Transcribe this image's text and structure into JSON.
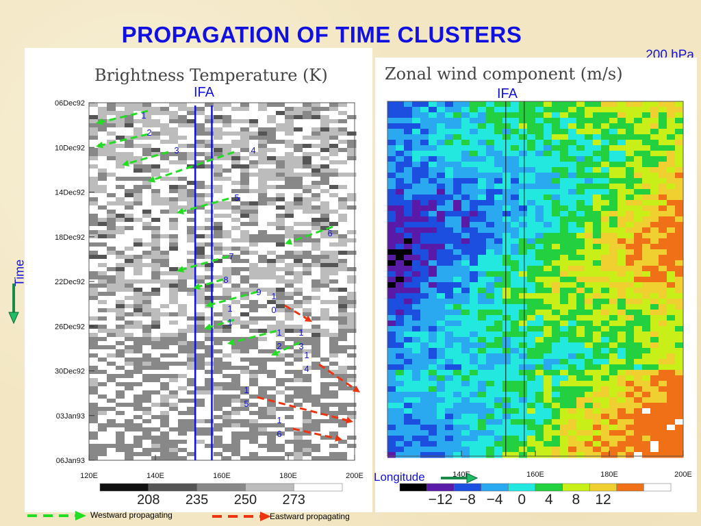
{
  "slide": {
    "title": "PROPAGATION  OF TIME CLUSTERS",
    "level_label": "200 hPa",
    "time_label": "Time",
    "longitude_label": "Longitude",
    "westward_label": "Westward propagating",
    "eastward_label": "Eastward propagating",
    "ifa_label": "IFA"
  },
  "colors": {
    "title": "#1010e0",
    "westward": "#22dd22",
    "eastward": "#ee3311"
  },
  "chart_data": [
    {
      "type": "heatmap",
      "title": "Brightness Temperature (K)",
      "xlabel": "",
      "ylabel": "",
      "x_ticks": [
        "120E",
        "140E",
        "160E",
        "180E",
        "200E"
      ],
      "x_range": [
        120,
        200
      ],
      "y_ticks": [
        "06Dec92",
        "10Dec92",
        "14Dec92",
        "18Dec92",
        "22Dec92",
        "26Dec92",
        "30Dec92",
        "03Jan93",
        "06Jan93"
      ],
      "colorbar": {
        "labels": [
          "208",
          "235",
          "250",
          "273"
        ],
        "colors": [
          "#101010",
          "#555555",
          "#888888",
          "#bcbcbc",
          "#ffffff"
        ]
      },
      "ifa_lon": [
        152,
        157
      ],
      "tracks": [
        {
          "label": "1",
          "dir": "westward"
        },
        {
          "label": "2",
          "dir": "westward"
        },
        {
          "label": "3",
          "dir": "westward"
        },
        {
          "label": "4",
          "dir": "westward"
        },
        {
          "label": "5",
          "dir": "westward"
        },
        {
          "label": "6",
          "dir": "westward"
        },
        {
          "label": "7",
          "dir": "westward"
        },
        {
          "label": "8",
          "dir": "westward"
        },
        {
          "label": "9",
          "dir": "westward"
        },
        {
          "label": "10",
          "dir": "eastward"
        },
        {
          "label": "11",
          "dir": "westward"
        },
        {
          "label": "12",
          "dir": "westward"
        },
        {
          "label": "13",
          "dir": "westward"
        },
        {
          "label": "14",
          "dir": "eastward"
        },
        {
          "label": "15",
          "dir": "eastward"
        },
        {
          "label": "16",
          "dir": "eastward"
        }
      ]
    },
    {
      "type": "heatmap",
      "title": "Zonal wind component (m/s)",
      "xlabel": "",
      "ylabel": "",
      "x_ticks": [
        "140E",
        "160E",
        "180E",
        "200E"
      ],
      "x_range": [
        120,
        200
      ],
      "colorbar": {
        "labels": [
          "−12",
          "−8",
          "−4",
          "0",
          "4",
          "8",
          "12"
        ],
        "colors": [
          "#000000",
          "#5a1aa8",
          "#1c4fe0",
          "#2aa8f0",
          "#22e8e0",
          "#22d040",
          "#c8f018",
          "#f0d030",
          "#f07018",
          "#ffffff"
        ]
      },
      "ifa_lon": [
        152,
        157
      ]
    }
  ]
}
